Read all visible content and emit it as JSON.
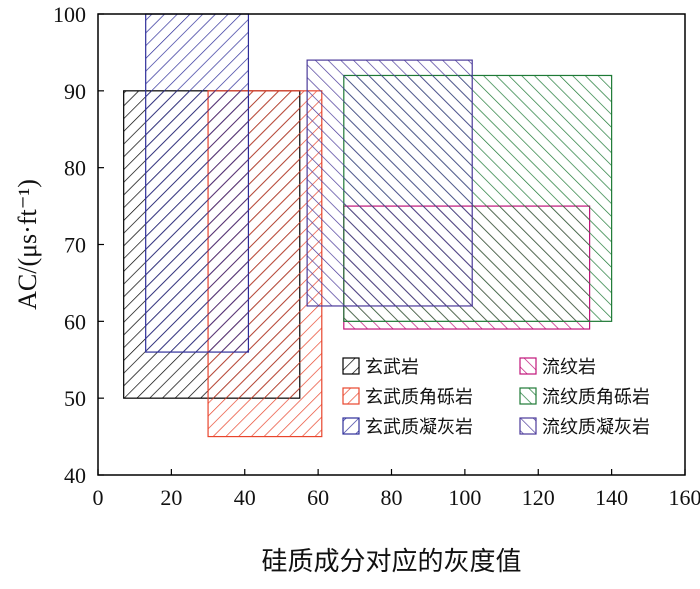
{
  "chart_data": {
    "type": "range-rectangles",
    "title": "",
    "xlabel": "硅质成分对应的灰度值",
    "ylabel": "AC/(μs·ft⁻¹)",
    "xlim": [
      0,
      160
    ],
    "ylim": [
      40,
      100
    ],
    "xticks": [
      0,
      20,
      40,
      60,
      80,
      100,
      120,
      140,
      160
    ],
    "yticks": [
      40,
      50,
      60,
      70,
      80,
      90,
      100
    ],
    "grid": false,
    "legend_position": "bottom-right (inside plot)",
    "series": [
      {
        "name": "玄武岩",
        "color": "#000000",
        "hatch": "forward-diagonal",
        "x": [
          7,
          55
        ],
        "y": [
          50,
          90
        ]
      },
      {
        "name": "玄武质角砾岩",
        "color": "#e8452d",
        "hatch": "forward-diagonal",
        "x": [
          30,
          61
        ],
        "y": [
          45,
          90
        ]
      },
      {
        "name": "玄武质凝灰岩",
        "color": "#2e2e9a",
        "hatch": "forward-diagonal",
        "x": [
          13,
          41
        ],
        "y": [
          56,
          100
        ]
      },
      {
        "name": "流纹岩",
        "color": "#c0147a",
        "hatch": "back-diagonal",
        "x": [
          67,
          134
        ],
        "y": [
          59,
          75
        ]
      },
      {
        "name": "流纹质角砾岩",
        "color": "#1e7a36",
        "hatch": "back-diagonal",
        "x": [
          67,
          140
        ],
        "y": [
          60,
          92
        ]
      },
      {
        "name": "流纹质凝灰岩",
        "color": "#4b3a9a",
        "hatch": "back-diagonal",
        "x": [
          57,
          102
        ],
        "y": [
          62,
          94
        ]
      }
    ]
  }
}
